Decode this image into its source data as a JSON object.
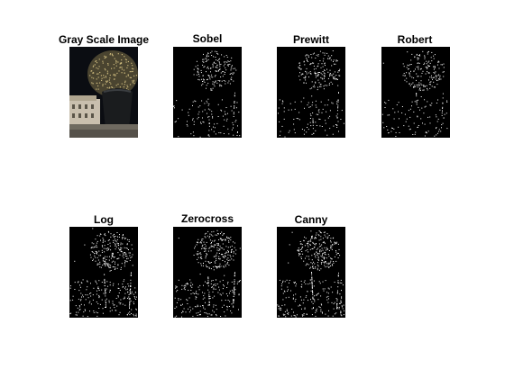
{
  "figure": {
    "background": "#ffffff",
    "panels": [
      {
        "title": "Gray Scale Image",
        "kind": "photo"
      },
      {
        "title": "Sobel",
        "kind": "edges"
      },
      {
        "title": "Prewitt",
        "kind": "edges"
      },
      {
        "title": "Robert",
        "kind": "edges"
      },
      {
        "title": "Log",
        "kind": "edges"
      },
      {
        "title": "Zerocross",
        "kind": "edges"
      },
      {
        "title": "Canny",
        "kind": "edges"
      }
    ],
    "colors": {
      "edge_background": "#000000",
      "edge_pixel": "#ffffff",
      "photo_sky": "#0b0d12",
      "photo_foliage": "#9a8a5a",
      "photo_pot": "#1a1c1e",
      "photo_building": "#c9bfae",
      "photo_ground": "#6f6a60"
    }
  }
}
